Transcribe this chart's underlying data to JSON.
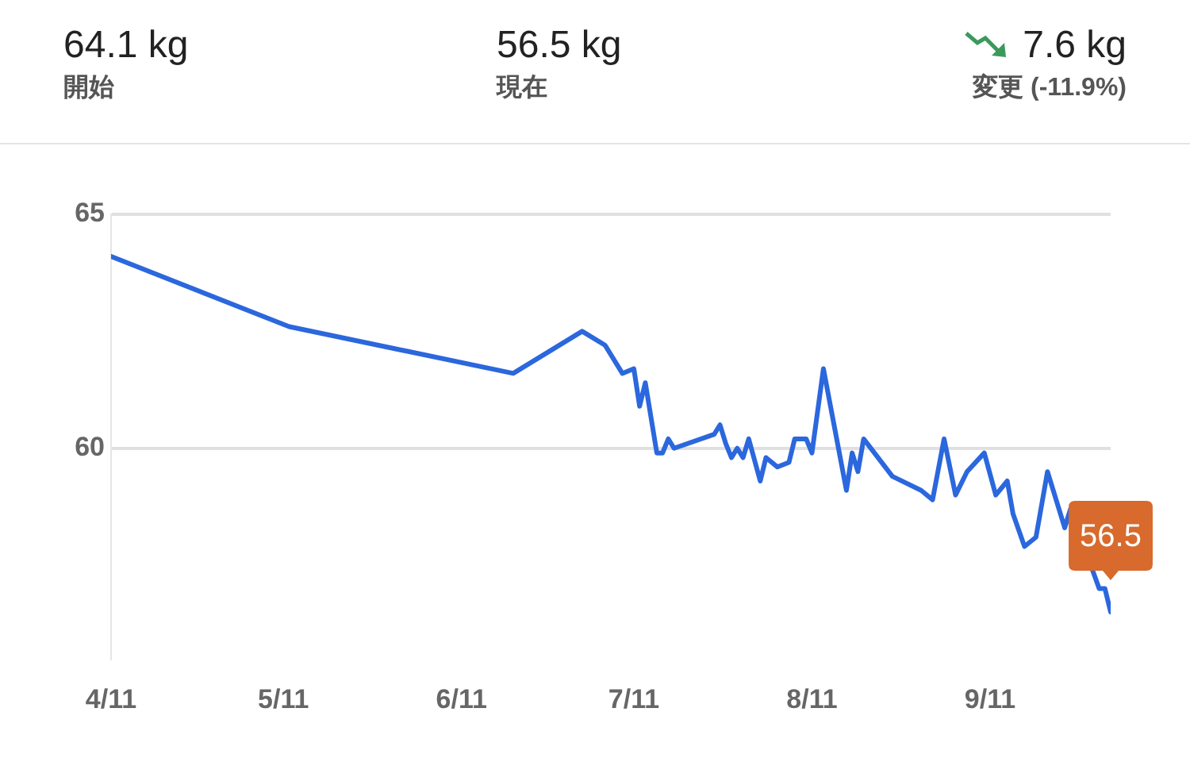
{
  "chart_data": {
    "type": "line",
    "x": [
      "--04-11",
      "--05-12",
      "--06-20",
      "--07-02",
      "--07-06",
      "--07-09",
      "--07-11",
      "--07-12",
      "--07-13",
      "--07-15",
      "--07-16",
      "--07-17",
      "--07-18",
      "--07-25",
      "--07-26",
      "--07-27",
      "--07-28",
      "--07-29",
      "--07-30",
      "--07-31",
      "--08-02",
      "--08-03",
      "--08-05",
      "--08-07",
      "--08-08",
      "--08-10",
      "--08-11",
      "--08-13",
      "--08-15",
      "--08-17",
      "--08-18",
      "--08-19",
      "--08-20",
      "--08-25",
      "--08-30",
      "--09-01",
      "--09-03",
      "--09-05",
      "--09-07",
      "--09-10",
      "--09-12",
      "--09-14",
      "--09-15",
      "--09-17",
      "--09-19",
      "--09-21",
      "--09-24",
      "--09-25",
      "--09-30",
      "--10-01",
      "--10-02"
    ],
    "series": [
      {
        "color": "#2b67dd",
        "values": [
          64.1,
          62.6,
          61.6,
          62.5,
          62.2,
          61.6,
          61.7,
          60.9,
          61.4,
          59.9,
          59.9,
          60.2,
          60.0,
          60.3,
          60.5,
          60.1,
          59.8,
          60.0,
          59.8,
          60.2,
          59.3,
          59.8,
          59.6,
          59.7,
          60.2,
          60.2,
          59.9,
          61.7,
          60.4,
          59.1,
          59.9,
          59.5,
          60.2,
          59.4,
          59.1,
          58.9,
          60.2,
          59.0,
          59.5,
          59.9,
          59.0,
          59.3,
          58.6,
          57.9,
          58.1,
          59.5,
          58.3,
          58.7,
          57.0,
          57.0,
          56.5
        ]
      }
    ],
    "xlim": [
      "--04-11",
      "--10-02"
    ],
    "xticks": [
      {
        "value": "--04-11",
        "label": "4/11"
      },
      {
        "value": "--05-11",
        "label": "5/11"
      },
      {
        "value": "--06-11",
        "label": "6/11"
      },
      {
        "value": "--07-11",
        "label": "7/11"
      },
      {
        "value": "--08-11",
        "label": "8/11"
      },
      {
        "value": "--09-11",
        "label": "9/11"
      }
    ],
    "ylim": [
      55.5,
      65
    ],
    "yticks": [
      60,
      65
    ],
    "grid": "y",
    "marker": "none",
    "annotations": [
      "64.1 kg",
      "開始",
      "56.5 kg",
      "現在",
      "7.6 kg",
      "変更 (-11.9%)",
      {
        "text": "56.5",
        "x": "--10-02",
        "y": 56.5
      }
    ]
  }
}
